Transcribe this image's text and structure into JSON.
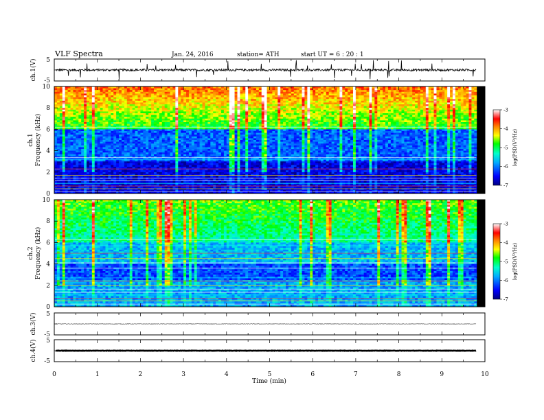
{
  "header": {
    "title": "VLF  Spectra",
    "date": "Jan. 24, 2016",
    "station": "station= ATH",
    "start": "start  UT  =   6  : 20 : 1"
  },
  "chart_data": [
    {
      "type": "line",
      "name": "ch1-waveform",
      "ylabel": "ch.1(V)",
      "yticks": [
        "5",
        "-5"
      ],
      "ylim": [
        -5,
        5
      ],
      "xlim": [
        0,
        10
      ],
      "baseline": 0,
      "trace_end_min": 9.8
    },
    {
      "type": "heatmap",
      "name": "ch1-spectrogram",
      "ylabel_ch": "ch.1",
      "ylabel": "Frequency  (kHz)",
      "yticks": [
        "0",
        "2",
        "4",
        "6",
        "8",
        "10"
      ],
      "ylim": [
        0,
        10
      ],
      "xlim": [
        0,
        10
      ],
      "colorbar": {
        "label": "log(PSD(V²/Hz)",
        "ticks": [
          "-3",
          "-4",
          "-5",
          "-6",
          "-7"
        ],
        "range": [
          -7,
          -3
        ]
      }
    },
    {
      "type": "heatmap",
      "name": "ch2-spectrogram",
      "ylabel_ch": "ch.2",
      "ylabel": "Frequency  (kHz)",
      "yticks": [
        "0",
        "2",
        "4",
        "6",
        "8",
        "10"
      ],
      "ylim": [
        0,
        10
      ],
      "xlim": [
        0,
        10
      ],
      "colorbar": {
        "label": "log(PSD(V²/Hz)",
        "ticks": [
          "-3",
          "-4",
          "-5",
          "-6",
          "-7"
        ],
        "range": [
          -7,
          -3
        ]
      }
    },
    {
      "type": "line",
      "name": "ch3-waveform",
      "ylabel": "ch.3(V)",
      "yticks": [
        "5",
        "-5"
      ],
      "ylim": [
        -5,
        5
      ],
      "xlim": [
        0,
        10
      ],
      "baseline": 0,
      "trace_end_min": 9.8
    },
    {
      "type": "line",
      "name": "ch4-waveform",
      "ylabel": "ch.4(V)",
      "yticks": [
        "5",
        "-5"
      ],
      "ylim": [
        -5,
        5
      ],
      "xlim": [
        0,
        10
      ],
      "baseline": 0,
      "trace_end_min": 9.8
    }
  ],
  "xaxis": {
    "label": "Time  (min)",
    "ticks": [
      "0",
      "1",
      "2",
      "3",
      "4",
      "5",
      "6",
      "7",
      "8",
      "9",
      "10"
    ],
    "range": [
      0,
      10
    ]
  }
}
